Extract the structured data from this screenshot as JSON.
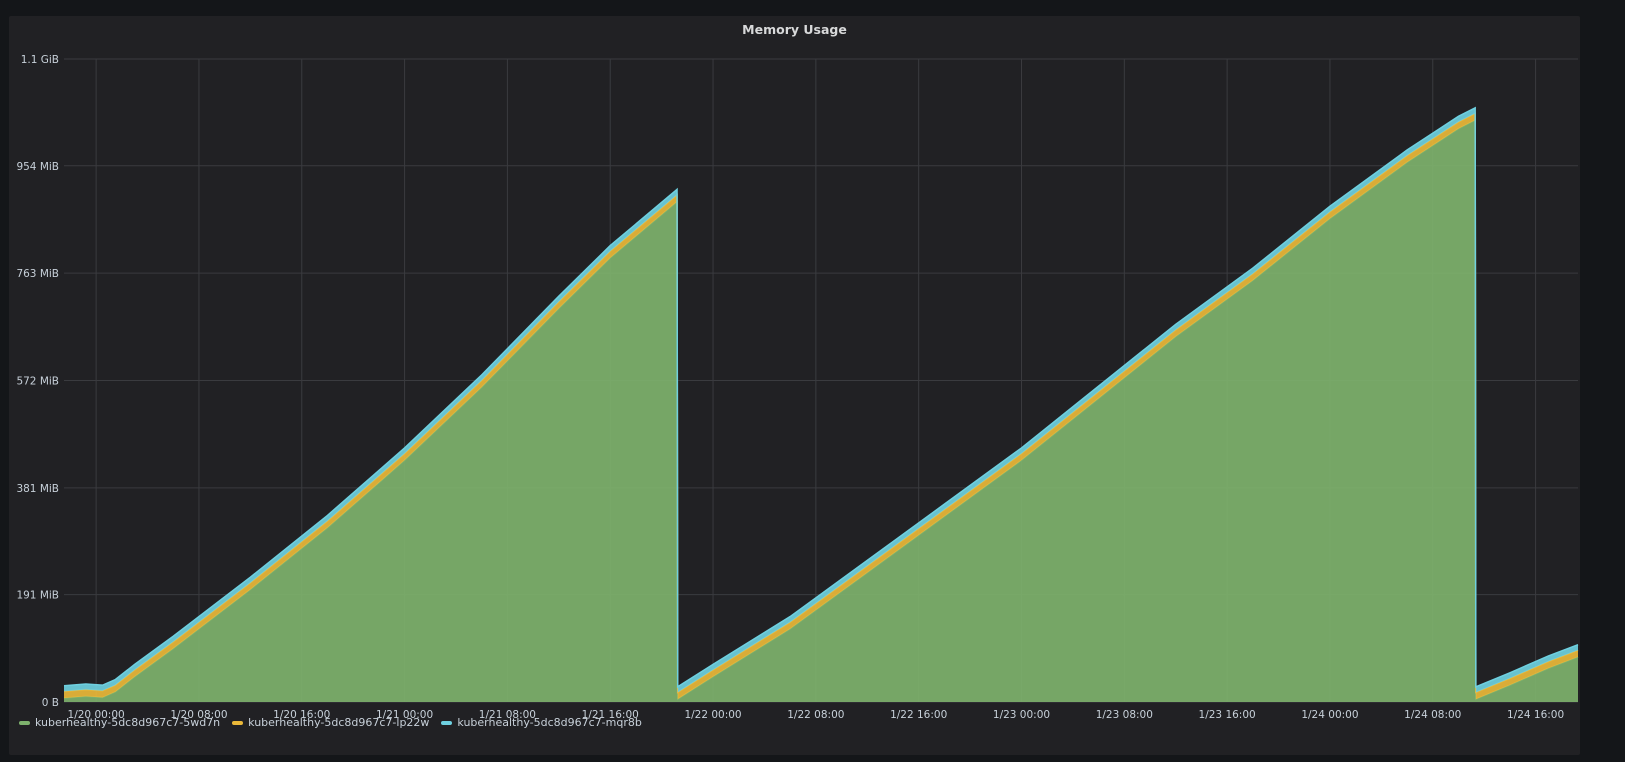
{
  "panel": {
    "title": "Memory Usage"
  },
  "chart_data": {
    "type": "area",
    "stacked": true,
    "title": "Memory Usage",
    "xlabel": "",
    "ylabel": "",
    "y_ticks": [
      "0 B",
      "191 MiB",
      "381 MiB",
      "572 MiB",
      "763 MiB",
      "954 MiB",
      "1.1 GiB"
    ],
    "y_tick_values_mib": [
      0,
      191,
      381,
      572,
      763,
      954,
      1144
    ],
    "ylim_mib": [
      0,
      1144
    ],
    "x_ticks": [
      "1/20 00:00",
      "1/20 08:00",
      "1/20 16:00",
      "1/21 00:00",
      "1/21 08:00",
      "1/21 16:00",
      "1/22 00:00",
      "1/22 08:00",
      "1/22 16:00",
      "1/23 00:00",
      "1/23 08:00",
      "1/23 16:00",
      "1/24 00:00",
      "1/24 08:00",
      "1/24 16:00"
    ],
    "x_unit": "hours since 1/20 00:00",
    "xlim_hours": [
      -2.5,
      115.3
    ],
    "grid": true,
    "legend_position": "bottom-left",
    "series": [
      {
        "name": "kuberhealthy-5dc8d967c7-5wd7n",
        "color": "#7eb26d",
        "x": [
          -2.5,
          -0.8,
          0.5,
          1.5,
          3,
          6,
          12,
          18,
          24,
          30,
          36,
          40,
          45.2,
          45.25,
          48,
          54,
          60,
          66,
          72,
          78,
          84,
          90,
          96,
          102,
          106,
          107.3,
          107.35,
          110,
          113,
          115.3
        ],
        "values": [
          7,
          10,
          8,
          18,
          45,
          95,
          200,
          310,
          430,
          560,
          700,
          790,
          890,
          5,
          45,
          130,
          230,
          330,
          430,
          540,
          650,
          750,
          860,
          960,
          1020,
          1035,
          5,
          30,
          60,
          80
        ]
      },
      {
        "name": "kuberhealthy-5dc8d967c7-lp22w",
        "color": "#eab839",
        "x": [
          -2.5,
          45.2,
          45.25,
          107.3,
          107.35,
          115.3
        ],
        "values": [
          12,
          12,
          12,
          12,
          12,
          12
        ]
      },
      {
        "name": "kuberhealthy-5dc8d967c7-mqr8b",
        "color": "#6ed0e0",
        "x": [
          -2.5,
          45.2,
          45.25,
          107.3,
          107.35,
          115.3
        ],
        "values": [
          10,
          10,
          10,
          10,
          10,
          10
        ]
      }
    ]
  }
}
